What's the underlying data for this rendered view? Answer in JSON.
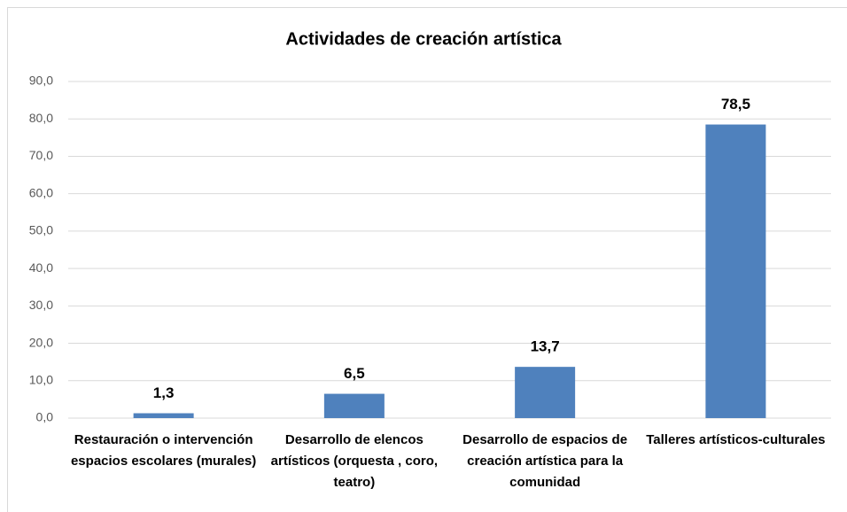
{
  "chart_data": {
    "type": "bar",
    "title": "Actividades de creación artística",
    "categories": [
      "Restauración o intervención espacios escolares (murales)",
      "Desarrollo de elencos artísticos (orquesta , coro, teatro)",
      "Desarrollo de espacios de creación artística para la comunidad",
      "Talleres artísticos-culturales"
    ],
    "values": [
      1.3,
      6.5,
      13.7,
      78.5
    ],
    "value_labels": [
      "1,3",
      "6,5",
      "13,7",
      "78,5"
    ],
    "color": "#4f81bd",
    "ylim": [
      0,
      90
    ],
    "yticks": [
      {
        "value": 0,
        "label": "0,0"
      },
      {
        "value": 10,
        "label": "10,0"
      },
      {
        "value": 20,
        "label": "20,0"
      },
      {
        "value": 30,
        "label": "30,0"
      },
      {
        "value": 40,
        "label": "40,0"
      },
      {
        "value": 50,
        "label": "50,0"
      },
      {
        "value": 60,
        "label": "60,0"
      },
      {
        "value": 70,
        "label": "70,0"
      },
      {
        "value": 80,
        "label": "80,0"
      },
      {
        "value": 90,
        "label": "90,0"
      }
    ],
    "grid": true
  }
}
